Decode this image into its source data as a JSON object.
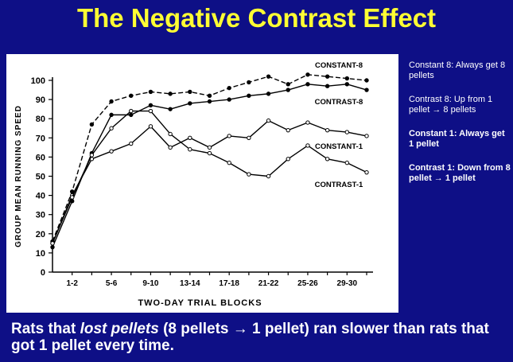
{
  "title": "The Negative Contrast Effect",
  "notes": [
    {
      "text": "Constant 8: Always get 8 pellets",
      "bold": false
    },
    {
      "text": "Contrast 8: Up from 1 pellet → 8 pellets",
      "bold": false
    },
    {
      "text": "Constant 1: Always get 1 pellet",
      "bold": true
    },
    {
      "text": "Contrast 1: Down from 8 pellet → 1 pellet",
      "bold": true
    }
  ],
  "caption": {
    "part1": "Rats that ",
    "emphasis": "lost pellets",
    "part2": " (8 pellets → 1 pellet) ran slower than rats that got 1 pellet every time."
  },
  "chart_data": {
    "type": "line",
    "xlabel": "TWO-DAY TRIAL BLOCKS",
    "ylabel": "GROUP MEAN RUNNING SPEED",
    "ylim": [
      0,
      100
    ],
    "yticks": [
      0,
      10,
      20,
      30,
      40,
      50,
      60,
      70,
      80,
      90,
      100
    ],
    "x": [
      0,
      1,
      2,
      3,
      4,
      5,
      6,
      7,
      8,
      9,
      10,
      11,
      12,
      13,
      14,
      15,
      16
    ],
    "xlim": [
      0,
      16
    ],
    "xtick_labels": [
      {
        "x": 1,
        "label": "1-2"
      },
      {
        "x": 3,
        "label": "5-6"
      },
      {
        "x": 5,
        "label": "9-10"
      },
      {
        "x": 7,
        "label": "13-14"
      },
      {
        "x": 9,
        "label": "17-18"
      },
      {
        "x": 11,
        "label": "21-22"
      },
      {
        "x": 13,
        "label": "25-26"
      },
      {
        "x": 15,
        "label": "29-30"
      }
    ],
    "series": [
      {
        "name": "CONSTANT-8",
        "dash": true,
        "label_color": "#000000",
        "values": [
          16,
          42,
          77,
          89,
          92,
          94,
          93,
          94,
          92,
          96,
          99,
          102,
          98,
          103,
          102,
          101,
          100
        ]
      },
      {
        "name": "CONTRAST-8",
        "dash": false,
        "label_color": "#000000",
        "values": [
          13,
          37,
          62,
          82,
          82,
          87,
          85,
          88,
          89,
          90,
          92,
          93,
          95,
          98,
          97,
          98,
          95
        ]
      },
      {
        "name": "CONSTANT-1",
        "dash": false,
        "label_color": "#000000",
        "values": [
          15,
          40,
          59,
          63,
          67,
          76,
          65,
          70,
          65,
          71,
          70,
          79,
          74,
          78,
          74,
          73,
          71
        ]
      },
      {
        "name": "CONTRAST-1",
        "dash": false,
        "label_color": "#000000",
        "values": [
          15,
          39,
          61,
          75,
          84,
          84,
          72,
          64,
          62,
          57,
          51,
          50,
          59,
          66,
          59,
          57,
          52
        ]
      }
    ]
  }
}
